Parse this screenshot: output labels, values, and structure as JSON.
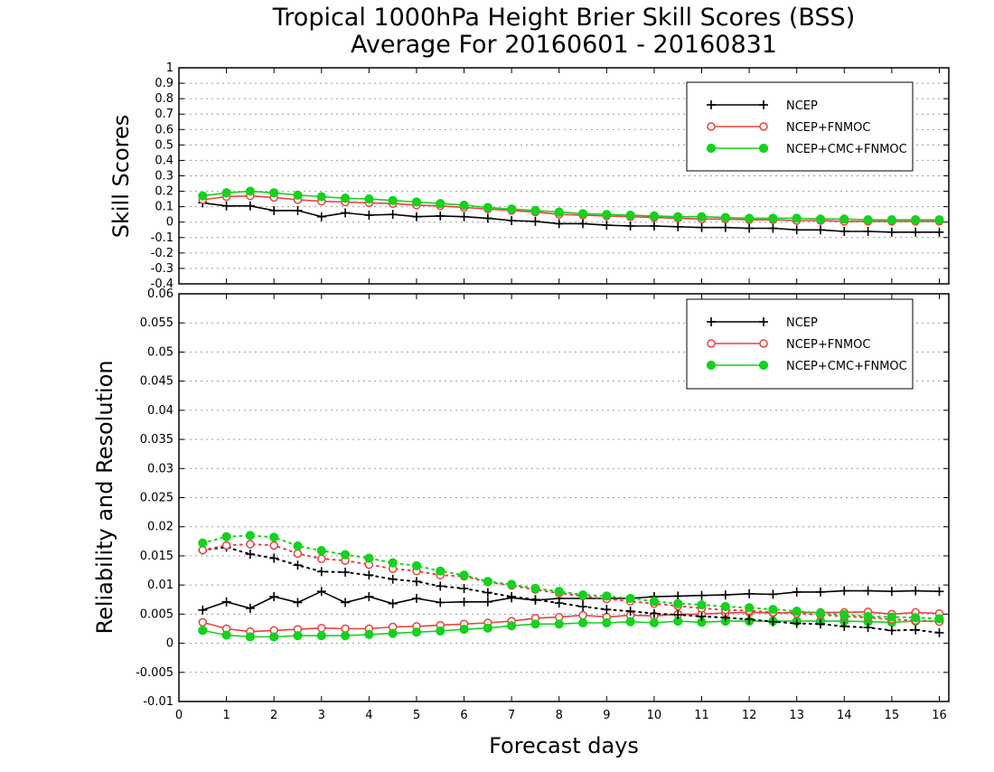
{
  "page": {
    "title_line1": "Tropical 1000hPa Height Brier Skill Scores (BSS)",
    "title_line2": "Average For 20160601 - 20160831"
  },
  "colors": {
    "NCEP": "#000000",
    "NCEP+FNMOC": "#e8423c",
    "NCEP+CMC+FNMOC": "#14d21e"
  },
  "chart_data": [
    {
      "type": "line",
      "ylabel": "Skill Scores",
      "xlim": [
        0,
        16.2
      ],
      "ylim": [
        -0.4,
        1
      ],
      "yticks": [
        -0.4,
        -0.3,
        -0.2,
        -0.1,
        0,
        0.1,
        0.2,
        0.3,
        0.4,
        0.5,
        0.6,
        0.7,
        0.8,
        0.9,
        1
      ],
      "grid": true,
      "legend": {
        "placement": "top-right",
        "entries": [
          "NCEP",
          "NCEP+FNMOC",
          "NCEP+CMC+FNMOC"
        ]
      },
      "x": [
        0.5,
        1,
        1.5,
        2,
        2.5,
        3,
        3.5,
        4,
        4.5,
        5,
        5.5,
        6,
        6.5,
        7,
        7.5,
        8,
        8.5,
        9,
        9.5,
        10,
        10.5,
        11,
        11.5,
        12,
        12.5,
        13,
        13.5,
        14,
        14.5,
        15,
        15.5,
        16
      ],
      "series": [
        {
          "name": "NCEP",
          "marker": "plus",
          "style": "solid",
          "values": [
            0.125,
            0.105,
            0.105,
            0.075,
            0.075,
            0.035,
            0.06,
            0.045,
            0.05,
            0.035,
            0.04,
            0.035,
            0.025,
            0.01,
            0.005,
            -0.01,
            -0.01,
            -0.02,
            -0.025,
            -0.025,
            -0.03,
            -0.035,
            -0.035,
            -0.04,
            -0.04,
            -0.05,
            -0.05,
            -0.06,
            -0.06,
            -0.065,
            -0.065,
            -0.065
          ]
        },
        {
          "name": "NCEP+FNMOC",
          "marker": "open-circle",
          "style": "solid",
          "values": [
            0.145,
            0.165,
            0.17,
            0.16,
            0.145,
            0.135,
            0.13,
            0.125,
            0.12,
            0.11,
            0.105,
            0.095,
            0.085,
            0.075,
            0.065,
            0.05,
            0.045,
            0.04,
            0.035,
            0.03,
            0.025,
            0.02,
            0.02,
            0.015,
            0.015,
            0.01,
            0.01,
            0.005,
            0.005,
            0.005,
            0.005,
            0.005
          ]
        },
        {
          "name": "NCEP+CMC+FNMOC",
          "marker": "filled-circle",
          "style": "solid",
          "values": [
            0.17,
            0.19,
            0.2,
            0.19,
            0.175,
            0.165,
            0.155,
            0.15,
            0.14,
            0.13,
            0.12,
            0.11,
            0.095,
            0.085,
            0.075,
            0.065,
            0.055,
            0.05,
            0.045,
            0.04,
            0.035,
            0.035,
            0.03,
            0.025,
            0.025,
            0.025,
            0.02,
            0.02,
            0.015,
            0.015,
            0.015,
            0.015
          ]
        }
      ]
    },
    {
      "type": "line",
      "xlabel": "Forecast days",
      "ylabel": "Reliability and Resolution",
      "xlim": [
        0,
        16.2
      ],
      "ylim": [
        -0.01,
        0.06
      ],
      "xticks": [
        0,
        1,
        2,
        3,
        4,
        5,
        6,
        7,
        8,
        9,
        10,
        11,
        12,
        13,
        14,
        15,
        16
      ],
      "yticks": [
        -0.01,
        -0.005,
        0,
        0.005,
        0.01,
        0.015,
        0.02,
        0.025,
        0.03,
        0.035,
        0.04,
        0.045,
        0.05,
        0.055,
        0.06
      ],
      "grid": true,
      "legend": {
        "placement": "top-right",
        "entries": [
          "NCEP",
          "NCEP+FNMOC",
          "NCEP+CMC+FNMOC"
        ]
      },
      "x": [
        0.5,
        1,
        1.5,
        2,
        2.5,
        3,
        3.5,
        4,
        4.5,
        5,
        5.5,
        6,
        6.5,
        7,
        7.5,
        8,
        8.5,
        9,
        9.5,
        10,
        10.5,
        11,
        11.5,
        12,
        12.5,
        13,
        13.5,
        14,
        14.5,
        15,
        15.5,
        16
      ],
      "series": [
        {
          "name": "NCEP",
          "marker": "plus",
          "style": "solid",
          "group": "reliability",
          "values": [
            0.0057,
            0.0071,
            0.006,
            0.008,
            0.007,
            0.0089,
            0.007,
            0.008,
            0.0068,
            0.0077,
            0.007,
            0.0071,
            0.0071,
            0.0078,
            0.0074,
            0.0077,
            0.0077,
            0.0077,
            0.0077,
            0.008,
            0.0081,
            0.0082,
            0.0083,
            0.0085,
            0.0084,
            0.0088,
            0.0088,
            0.009,
            0.009,
            0.0089,
            0.009,
            0.0089
          ]
        },
        {
          "name": "NCEP+FNMOC",
          "marker": "open-circle",
          "style": "solid",
          "group": "reliability",
          "values": [
            0.0036,
            0.0025,
            0.002,
            0.0022,
            0.0024,
            0.0026,
            0.0025,
            0.0025,
            0.0028,
            0.0029,
            0.0031,
            0.0033,
            0.0035,
            0.0038,
            0.0043,
            0.0045,
            0.0048,
            0.0045,
            0.0048,
            0.0047,
            0.005,
            0.005,
            0.0052,
            0.0053,
            0.0052,
            0.0053,
            0.0053,
            0.0053,
            0.0054,
            0.005,
            0.0053,
            0.0051
          ]
        },
        {
          "name": "NCEP+CMC+FNMOC",
          "marker": "filled-circle",
          "style": "solid",
          "group": "reliability",
          "values": [
            0.0022,
            0.0014,
            0.0011,
            0.0011,
            0.0013,
            0.0013,
            0.0013,
            0.0015,
            0.0017,
            0.0019,
            0.0021,
            0.0024,
            0.0026,
            0.003,
            0.0033,
            0.0033,
            0.0035,
            0.0035,
            0.0037,
            0.0035,
            0.0038,
            0.0036,
            0.0038,
            0.0038,
            0.0038,
            0.0038,
            0.0038,
            0.0038,
            0.0037,
            0.0036,
            0.0038,
            0.0038
          ]
        },
        {
          "name": "NCEP",
          "marker": "plus",
          "style": "dotted",
          "group": "resolution",
          "values": [
            0.016,
            0.0165,
            0.0153,
            0.0146,
            0.0134,
            0.0123,
            0.0122,
            0.0117,
            0.011,
            0.0106,
            0.0098,
            0.0094,
            0.0087,
            0.008,
            0.0075,
            0.0069,
            0.0063,
            0.0058,
            0.0055,
            0.0051,
            0.0049,
            0.0046,
            0.0044,
            0.0041,
            0.0037,
            0.0034,
            0.0033,
            0.0029,
            0.0027,
            0.0022,
            0.0023,
            0.0018
          ]
        },
        {
          "name": "NCEP+FNMOC",
          "marker": "open-circle",
          "style": "dotted",
          "group": "resolution",
          "values": [
            0.016,
            0.0168,
            0.017,
            0.0168,
            0.0154,
            0.0145,
            0.0142,
            0.0135,
            0.0128,
            0.0124,
            0.0117,
            0.0115,
            0.0105,
            0.0099,
            0.0092,
            0.0086,
            0.0081,
            0.0076,
            0.0072,
            0.0068,
            0.0064,
            0.006,
            0.0057,
            0.0056,
            0.0053,
            0.0051,
            0.0049,
            0.0046,
            0.0044,
            0.0041,
            0.0039,
            0.0037
          ]
        },
        {
          "name": "NCEP+CMC+FNMOC",
          "marker": "filled-circle",
          "style": "dotted",
          "group": "resolution",
          "values": [
            0.0172,
            0.0183,
            0.0185,
            0.0182,
            0.0167,
            0.0159,
            0.0152,
            0.0146,
            0.0138,
            0.0133,
            0.0124,
            0.0117,
            0.0106,
            0.0101,
            0.0094,
            0.0089,
            0.0083,
            0.0081,
            0.0077,
            0.0072,
            0.0068,
            0.0066,
            0.0063,
            0.0061,
            0.0058,
            0.0055,
            0.0052,
            0.0049,
            0.0046,
            0.0045,
            0.0044,
            0.0042
          ]
        }
      ]
    }
  ]
}
